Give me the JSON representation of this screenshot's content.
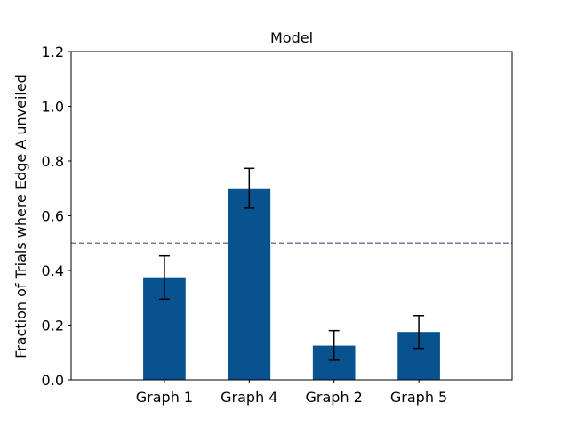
{
  "chart_data": {
    "type": "bar",
    "title": "Model",
    "xlabel": "",
    "ylabel": "Fraction of Trials where Edge A unveiled",
    "categories": [
      "Graph 1",
      "Graph 4",
      "Graph 2",
      "Graph 5"
    ],
    "values": [
      0.375,
      0.7,
      0.125,
      0.175
    ],
    "error_low": [
      0.295,
      0.628,
      0.072,
      0.115
    ],
    "error_high": [
      0.453,
      0.773,
      0.18,
      0.235
    ],
    "reference_line": 0.5,
    "ylim": [
      0,
      1.2
    ],
    "yticks": [
      "0.0",
      "0.2",
      "0.4",
      "0.6",
      "0.8",
      "1.0",
      "1.2"
    ],
    "ytick_values": [
      0,
      0.2,
      0.4,
      0.6,
      0.8,
      1.0,
      1.2
    ],
    "bar_color": "#08538f",
    "reference_color": "#7a7a9a",
    "grid": false
  }
}
